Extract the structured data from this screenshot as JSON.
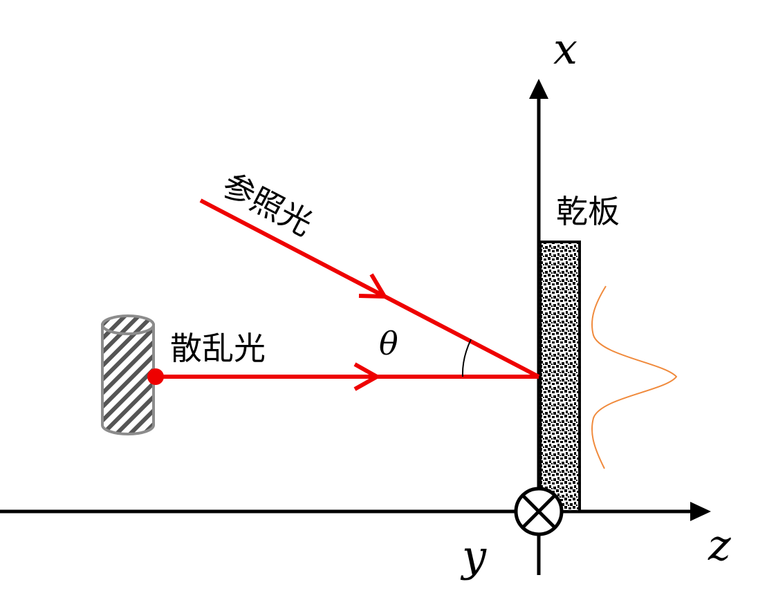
{
  "labels": {
    "reference_light": "参照光",
    "scattered_light": "散乱光",
    "plate": "乾板",
    "angle": "θ"
  },
  "axes": {
    "x": "x",
    "y": "y",
    "z": "z"
  },
  "colors": {
    "beam": "#ee0000",
    "wave": "#f08a3c",
    "axis": "#000000",
    "object": "#8c8c8c"
  }
}
